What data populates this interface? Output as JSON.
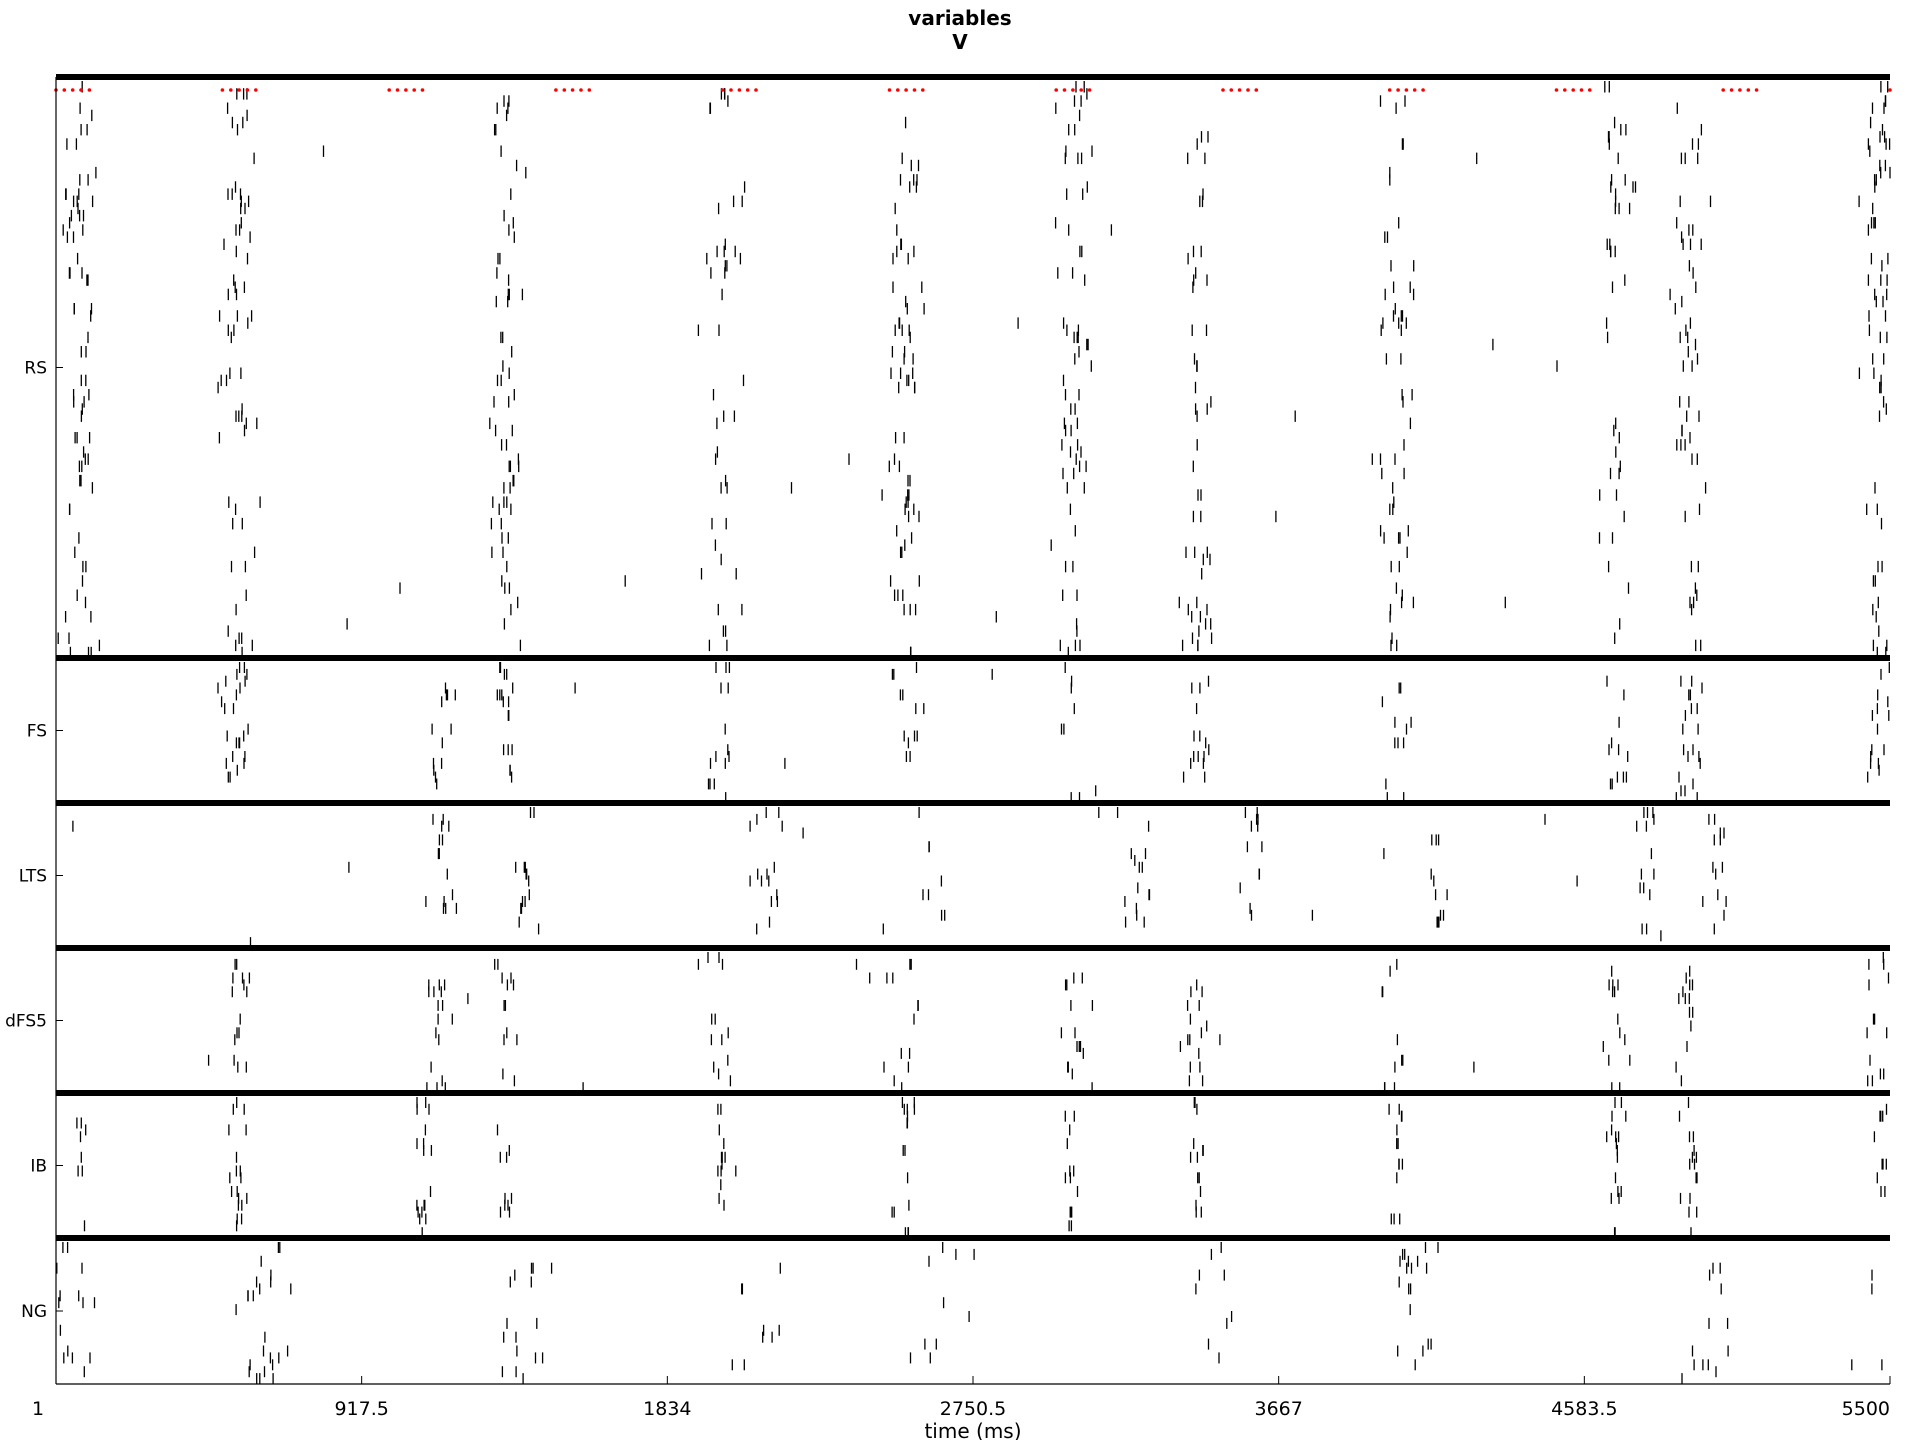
{
  "chart_data": {
    "type": "scatter",
    "title": [
      "variables",
      "V"
    ],
    "xlabel": "time (ms)",
    "ylabel": "",
    "xlim": [
      1,
      5500
    ],
    "xticks": [
      1,
      917.5,
      1834,
      2750.5,
      3667,
      4583.5,
      5500
    ],
    "xtick_labels": [
      "1",
      "917.5",
      "1834",
      "2750.5",
      "3667",
      "4583.5",
      "5500"
    ],
    "grid": false,
    "colors": {
      "spikes": "#000000",
      "stimulus": "#ff0000",
      "separators": "#000000"
    },
    "stimulus_markers": {
      "color": "#ff0000",
      "description": "red dotted pulse marks along the top of the RS population",
      "pulse_starts_ms": [
        1,
        500,
        1000,
        1500,
        2000,
        2500,
        3000,
        3500,
        4000,
        4500,
        5000,
        5500
      ],
      "pulse_duration_ms": 100
    },
    "population_order": [
      "RS",
      "FS",
      "LTS",
      "dFS5",
      "IB",
      "NG"
    ],
    "populations": [
      {
        "name": "RS",
        "cells": 80,
        "burst_times_ms": [
          70,
          550,
          1350,
          2000,
          2550,
          3050,
          3420,
          4020,
          4680,
          4900,
          5470
        ],
        "spread_ms": 55,
        "background_rate": 0.6
      },
      {
        "name": "FS",
        "cells": 20,
        "burst_times_ms": [
          550,
          1150,
          1350,
          2000,
          2550,
          3050,
          3420,
          4020,
          4680,
          4900,
          5470
        ],
        "spread_ms": 45,
        "background_rate": 0.7
      },
      {
        "name": "LTS",
        "cells": 20,
        "burst_times_ms": [
          1150,
          1400,
          2130,
          2630,
          3250,
          3600,
          4150,
          4770,
          4980
        ],
        "spread_ms": 50,
        "background_rate": 1.0
      },
      {
        "name": "dFS5",
        "cells": 20,
        "burst_times_ms": [
          550,
          1150,
          1350,
          2000,
          2550,
          3050,
          3420,
          4020,
          4680,
          4900,
          5470
        ],
        "spread_ms": 50,
        "background_rate": 0.9
      },
      {
        "name": "IB",
        "cells": 20,
        "burst_times_ms": [
          80,
          550,
          1100,
          1350,
          2000,
          2550,
          3050,
          3420,
          4020,
          4680,
          4900,
          5470
        ],
        "spread_ms": 28,
        "background_rate": 0.15
      },
      {
        "name": "NG",
        "cells": 20,
        "burst_times_ms": [
          40,
          620,
          1400,
          2100,
          2650,
          3450,
          4080,
          4950,
          5480
        ],
        "spread_ms": 85,
        "background_rate": 0.3
      }
    ]
  }
}
